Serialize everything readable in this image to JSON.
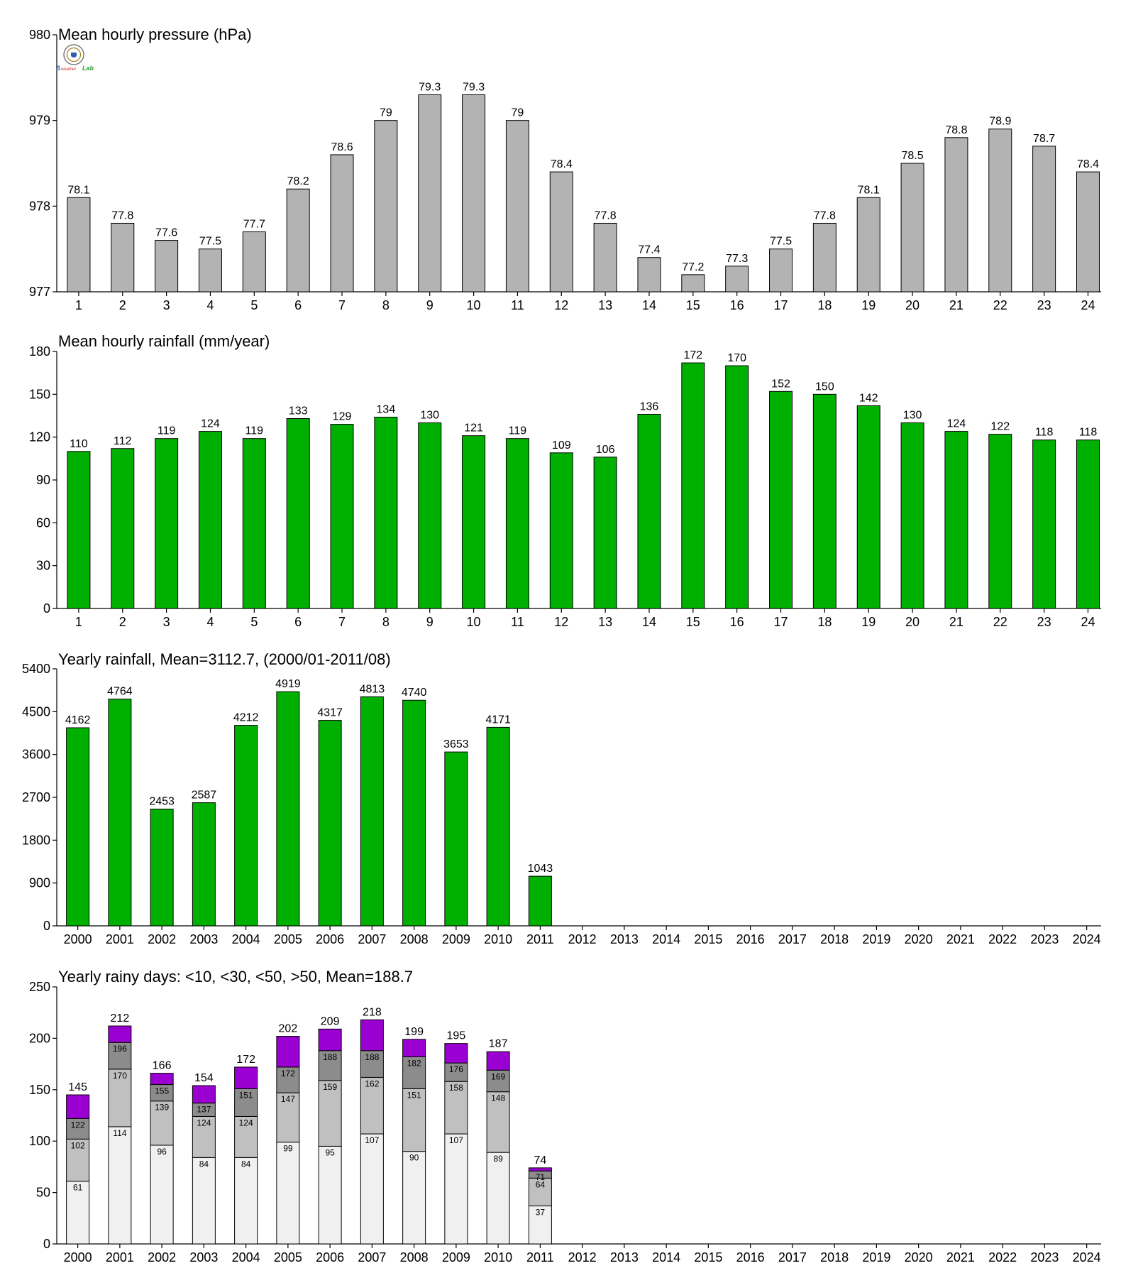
{
  "colors": {
    "pressure_bar": "#b3b3b3",
    "rain_bar": "#00b000",
    "days_lt10": "#f0f0f0",
    "days_lt30": "#c0c0c0",
    "days_lt50": "#8c8c8c",
    "days_gt50": "#9b00d3"
  },
  "logo_icon": "lab-seal-logo",
  "chart_data": [
    {
      "type": "bar",
      "title": "Mean hourly pressure (hPa)",
      "categories": [
        "1",
        "2",
        "3",
        "4",
        "5",
        "6",
        "7",
        "8",
        "9",
        "10",
        "11",
        "12",
        "13",
        "14",
        "15",
        "16",
        "17",
        "18",
        "19",
        "20",
        "21",
        "22",
        "23",
        "24"
      ],
      "values": [
        978.1,
        977.8,
        977.6,
        977.5,
        977.7,
        978.2,
        978.6,
        979.0,
        979.3,
        979.3,
        979.0,
        978.4,
        977.8,
        977.4,
        977.2,
        977.3,
        977.5,
        977.8,
        978.1,
        978.5,
        978.8,
        978.9,
        978.7,
        978.4
      ],
      "data_labels": [
        "78.1",
        "77.8",
        "77.6",
        "77.5",
        "77.7",
        "78.2",
        "78.6",
        "79",
        "79.3",
        "79.3",
        "79",
        "78.4",
        "77.8",
        "77.4",
        "77.2",
        "77.3",
        "77.5",
        "77.8",
        "78.1",
        "78.5",
        "78.8",
        "78.9",
        "78.7",
        "78.4"
      ],
      "yticks": [
        977,
        978,
        979,
        980
      ],
      "ylim": [
        977,
        980
      ],
      "grid": false
    },
    {
      "type": "bar",
      "title": "Mean hourly rainfall (mm/year)",
      "categories": [
        "1",
        "2",
        "3",
        "4",
        "5",
        "6",
        "7",
        "8",
        "9",
        "10",
        "11",
        "12",
        "13",
        "14",
        "15",
        "16",
        "17",
        "18",
        "19",
        "20",
        "21",
        "22",
        "23",
        "24"
      ],
      "values": [
        110,
        112,
        119,
        124,
        119,
        133,
        129,
        134,
        130,
        121,
        119,
        109,
        106,
        136,
        172,
        170,
        152,
        150,
        142,
        130,
        124,
        122,
        118,
        118
      ],
      "data_labels": [
        "110",
        "112",
        "119",
        "124",
        "119",
        "133",
        "129",
        "134",
        "130",
        "121",
        "119",
        "109",
        "106",
        "136",
        "172",
        "170",
        "152",
        "150",
        "142",
        "130",
        "124",
        "122",
        "118",
        "118"
      ],
      "yticks": [
        0,
        30,
        60,
        90,
        120,
        150,
        180
      ],
      "ylim": [
        0,
        180
      ],
      "grid": false
    },
    {
      "type": "bar",
      "title": "Yearly rainfall, Mean=3112.7, (2000/01-2011/08)",
      "categories": [
        "2000",
        "2001",
        "2002",
        "2003",
        "2004",
        "2005",
        "2006",
        "2007",
        "2008",
        "2009",
        "2010",
        "2011",
        "2012",
        "2013",
        "2014",
        "2015",
        "2016",
        "2017",
        "2018",
        "2019",
        "2020",
        "2021",
        "2022",
        "2023",
        "2024"
      ],
      "values": [
        4162,
        4764,
        2453,
        2587,
        4212,
        4919,
        4317,
        4813,
        4740,
        3653,
        4171,
        1043,
        null,
        null,
        null,
        null,
        null,
        null,
        null,
        null,
        null,
        null,
        null,
        null,
        null
      ],
      "data_labels": [
        "4162",
        "4764",
        "2453",
        "2587",
        "4212",
        "4919",
        "4317",
        "4813",
        "4740",
        "3653",
        "4171",
        "1043",
        "",
        "",
        "",
        "",
        "",
        "",
        "",
        "",
        "",
        "",
        "",
        "",
        ""
      ],
      "yticks": [
        0,
        900,
        1800,
        2700,
        3600,
        4500,
        5400
      ],
      "ylim": [
        0,
        5400
      ],
      "grid": false
    },
    {
      "type": "bar",
      "stacked": true,
      "title": "Yearly rainy days: <10, <30, <50, >50, Mean=188.7",
      "categories": [
        "2000",
        "2001",
        "2002",
        "2003",
        "2004",
        "2005",
        "2006",
        "2007",
        "2008",
        "2009",
        "2010",
        "2011",
        "2012",
        "2013",
        "2014",
        "2015",
        "2016",
        "2017",
        "2018",
        "2019",
        "2020",
        "2021",
        "2022",
        "2023",
        "2024"
      ],
      "cumulative": [
        [
          61,
          102,
          122,
          145
        ],
        [
          114,
          170,
          196,
          212
        ],
        [
          96,
          139,
          155,
          166
        ],
        [
          84,
          124,
          137,
          154
        ],
        [
          84,
          124,
          151,
          172
        ],
        [
          99,
          147,
          172,
          202
        ],
        [
          95,
          159,
          188,
          209
        ],
        [
          107,
          162,
          188,
          218
        ],
        [
          90,
          151,
          182,
          199
        ],
        [
          107,
          158,
          176,
          195
        ],
        [
          89,
          148,
          169,
          187
        ],
        [
          37,
          64,
          71,
          74
        ],
        null,
        null,
        null,
        null,
        null,
        null,
        null,
        null,
        null,
        null,
        null,
        null,
        null
      ],
      "yticks": [
        0,
        50,
        100,
        150,
        200,
        250
      ],
      "ylim": [
        0,
        250
      ],
      "grid": false
    }
  ]
}
